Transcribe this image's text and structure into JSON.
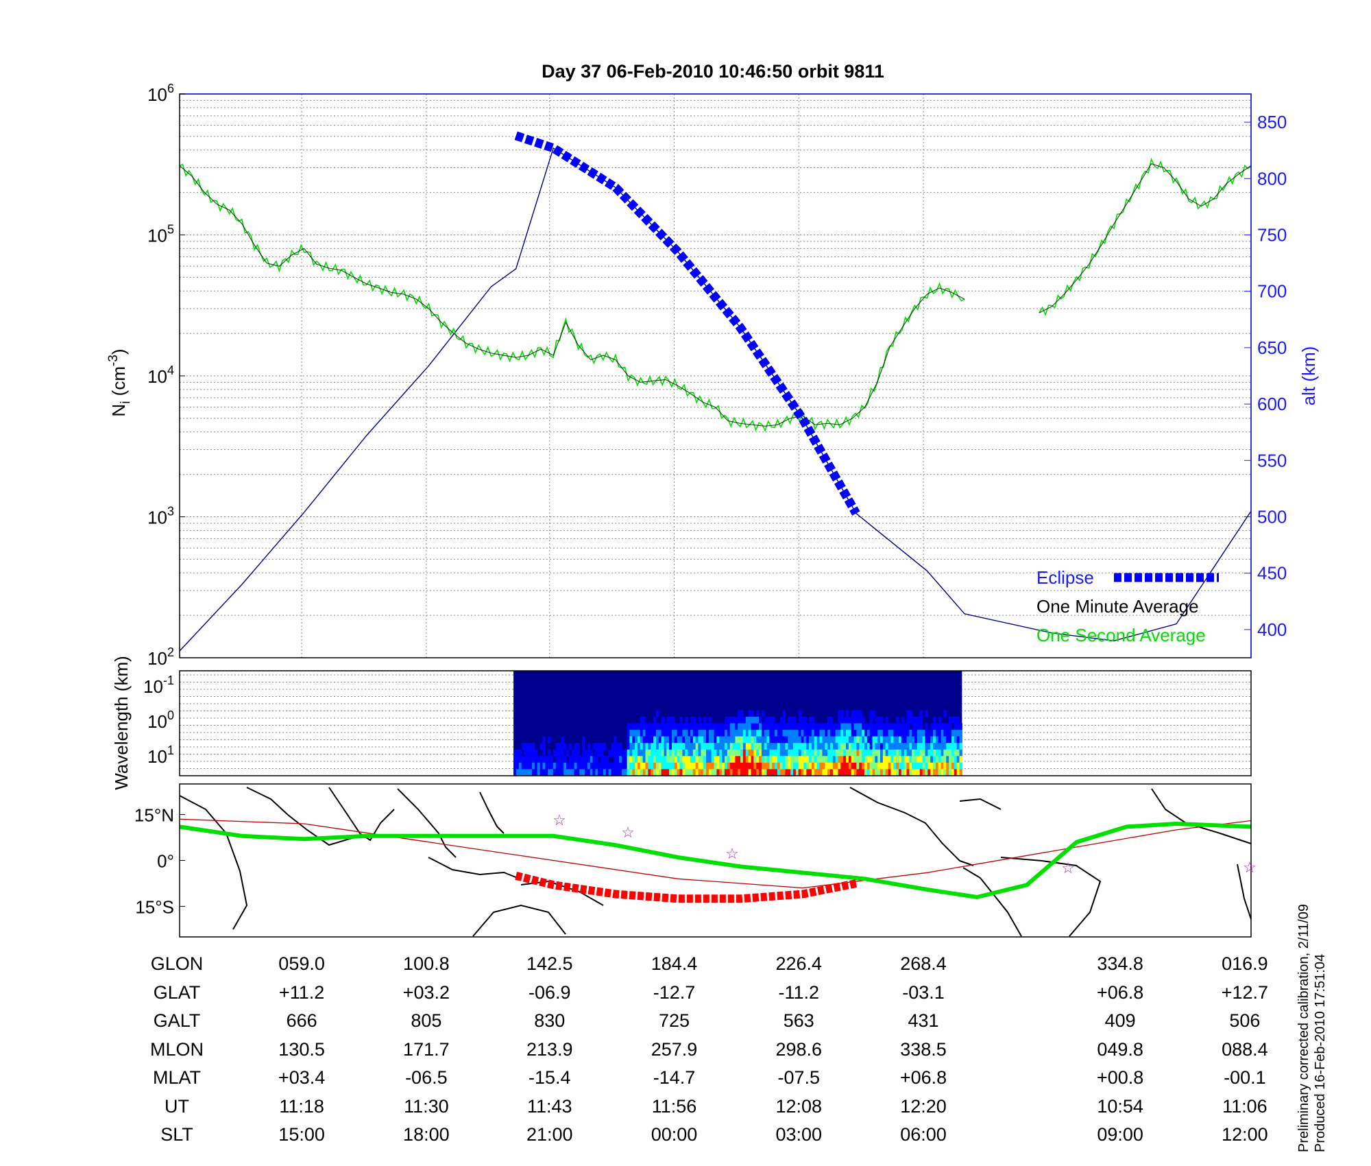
{
  "title": "Day 37  06-Feb-2010 10:46:50   orbit 9811",
  "chart_data": [
    {
      "type": "line",
      "panel": "density",
      "ylabel_left": "N_i (cm^-3)",
      "ylabel_right": "alt (km)",
      "y_scale_left": "log",
      "ylim_left": [
        100,
        1000000
      ],
      "ylim_right": [
        375,
        875
      ],
      "y_ticks_left": [
        "10^2",
        "10^3",
        "10^4",
        "10^5",
        "10^6"
      ],
      "y_ticks_right": [
        400,
        450,
        500,
        550,
        600,
        650,
        700,
        750,
        800,
        850
      ],
      "x_ticks_glon": [
        59.0,
        100.8,
        142.5,
        184.4,
        226.4,
        268.4,
        334.8,
        16.9
      ],
      "grid": true,
      "legend": {
        "placement": "bottom-right",
        "entries": [
          "Eclipse",
          "One Minute Average",
          "One Second Average"
        ]
      },
      "colors": {
        "eclipse": "#0000ff",
        "altitude": "#00008b",
        "minute_avg": "#000000",
        "second_avg": "#00e000"
      },
      "series": [
        {
          "name": "One Minute Average",
          "x": [
            0,
            0.1,
            0.2,
            0.3,
            0.4,
            0.5,
            0.6,
            0.7,
            0.8,
            0.9,
            1.0,
            1.1,
            1.2,
            1.3,
            1.4,
            1.5,
            1.6,
            1.7,
            1.8,
            1.9,
            2.0,
            2.1,
            2.2,
            2.3,
            2.4,
            2.5,
            2.6,
            2.7,
            2.8,
            2.9,
            3.0,
            3.1,
            3.2,
            3.3,
            3.4,
            3.5,
            3.6,
            3.7,
            3.8,
            3.9,
            4.0,
            4.1,
            4.2,
            4.3,
            4.4,
            4.5,
            4.6,
            4.7,
            4.8,
            4.9,
            5.0,
            5.1,
            5.2,
            5.3,
            5.4,
            5.5,
            5.6,
            5.7,
            5.8,
            5.9,
            6.0,
            6.1,
            6.2,
            6.3
          ],
          "y": [
            310000,
            260000,
            200000,
            165000,
            150000,
            120000,
            85000,
            63000,
            60000,
            72000,
            80000,
            62000,
            58000,
            56000,
            50000,
            45000,
            42000,
            39000,
            38000,
            35000,
            30000,
            24000,
            20000,
            17000,
            15500,
            14500,
            14000,
            13500,
            14000,
            15500,
            14000,
            24000,
            16500,
            13000,
            14000,
            13000,
            10000,
            9000,
            9200,
            9400,
            8500,
            7500,
            6500,
            6000,
            4800,
            4600,
            4500,
            4400,
            4500,
            5000,
            5200,
            4500,
            4600,
            4500,
            5000,
            6000,
            9000,
            16000,
            22000,
            30000,
            38000,
            42000,
            39000,
            35000
          ]
        },
        {
          "name": "One Minute Average",
          "x": [
            6.9,
            7.0,
            7.1,
            7.2,
            7.3,
            7.4,
            7.5,
            7.6,
            7.7,
            7.8,
            7.9,
            8.0,
            8.1,
            8.2,
            8.3,
            8.4,
            8.5,
            8.6
          ],
          "y": [
            28000,
            31000,
            38000,
            48000,
            62000,
            85000,
            120000,
            165000,
            230000,
            320000,
            300000,
            240000,
            180000,
            160000,
            180000,
            230000,
            270000,
            310000
          ]
        },
        {
          "name": "alt (km)",
          "x": [
            0,
            0.5,
            1.0,
            1.5,
            2.0,
            2.5,
            2.7,
            3.0,
            3.5,
            4.0,
            4.5,
            5.0,
            5.43,
            6.0,
            6.3,
            7.0,
            7.5,
            8.0,
            8.6
          ],
          "y": [
            381,
            440,
            504,
            572,
            634,
            704,
            720,
            827,
            792,
            735,
            668,
            587,
            503,
            452,
            414,
            397,
            390,
            405,
            505
          ]
        },
        {
          "name": "Eclipse",
          "x": [
            2.7,
            3.0,
            3.5,
            4.0,
            4.5,
            5.0,
            5.43
          ],
          "y": [
            838,
            827,
            792,
            735,
            668,
            587,
            503
          ]
        }
      ]
    },
    {
      "type": "heatmap",
      "panel": "spectrogram",
      "ylabel": "Wavelength (km)",
      "y_ticks": [
        "10^-1",
        "10^0",
        "10^1"
      ],
      "x_range": [
        2.68,
        6.28
      ],
      "colormap": [
        "#00008f",
        "#0000ff",
        "#0080ff",
        "#00ffff",
        "#80ff80",
        "#ffff00",
        "#ff8000",
        "#ff0000"
      ]
    },
    {
      "type": "line",
      "panel": "map",
      "y_ticks": [
        "15°N",
        "0°",
        "15°S"
      ],
      "ylim": [
        -25,
        25
      ],
      "colors": {
        "ground_track": "#00e000",
        "magnetic_equator": "#c00000",
        "eclipse_track": "#ff0000",
        "stars": "#c030c0"
      },
      "series": [
        {
          "name": "ground track",
          "x": [
            0,
            0.5,
            1.0,
            1.5,
            2.0,
            2.5,
            3.0,
            3.5,
            4.0,
            4.5,
            5.0,
            5.5,
            6.0,
            6.4,
            6.8,
            7.2,
            7.6,
            8.0,
            8.6
          ],
          "y": [
            11,
            8,
            7,
            8,
            8,
            8,
            8,
            5,
            1,
            -2,
            -4,
            -6,
            -9.5,
            -12,
            -8,
            6,
            11,
            12,
            11
          ]
        },
        {
          "name": "eclipse track",
          "x": [
            2.7,
            3.0,
            3.5,
            4.0,
            4.5,
            5.0,
            5.43
          ],
          "y": [
            -5,
            -8,
            -11,
            -12.5,
            -12.5,
            -11,
            -7.5
          ]
        }
      ]
    }
  ],
  "legend": {
    "eclipse": "Eclipse",
    "minute": "One Minute Average",
    "second": "One Second Average"
  },
  "table": {
    "rows": [
      {
        "label": "GLON",
        "values": [
          "059.0",
          "100.8",
          "142.5",
          "184.4",
          "226.4",
          "268.4",
          "334.8",
          "016.9"
        ]
      },
      {
        "label": "GLAT",
        "values": [
          "+11.2",
          "+03.2",
          "-06.9",
          "-12.7",
          "-11.2",
          "-03.1",
          "+06.8",
          "+12.7"
        ]
      },
      {
        "label": "GALT",
        "values": [
          "666",
          "805",
          "830",
          "725",
          "563",
          "431",
          "409",
          "506"
        ]
      },
      {
        "label": "MLON",
        "values": [
          "130.5",
          "171.7",
          "213.9",
          "257.9",
          "298.6",
          "338.5",
          "049.8",
          "088.4"
        ]
      },
      {
        "label": "MLAT",
        "values": [
          "+03.4",
          "-06.5",
          "-15.4",
          "-14.7",
          "-07.5",
          "+06.8",
          "+00.8",
          "-00.1"
        ]
      },
      {
        "label": "UT",
        "values": [
          "11:18",
          "11:30",
          "11:43",
          "11:56",
          "12:08",
          "12:20",
          "10:54",
          "11:06"
        ]
      },
      {
        "label": "SLT",
        "values": [
          "15:00",
          "18:00",
          "21:00",
          "00:00",
          "03:00",
          "06:00",
          "09:00",
          "12:00"
        ]
      }
    ]
  },
  "side_note": {
    "line1": "Preliminary corrected calibration, 2/11/09",
    "line2": "Produced 16-Feb-2010 17:51:04"
  }
}
